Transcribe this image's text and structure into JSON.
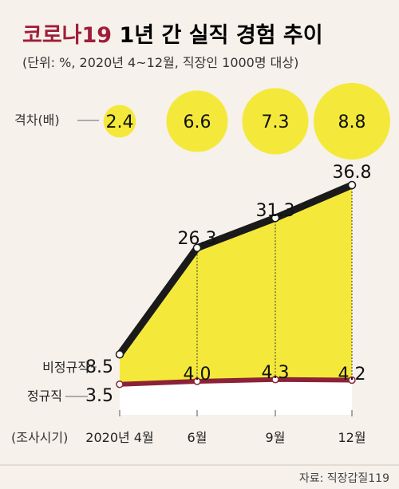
{
  "header": {
    "title_accent": "코로나19",
    "title_rest": " 1년 간 실직 경험 추이",
    "subtitle": "(단위: %, 2020년 4~12월, 직장인 1000명 대상)"
  },
  "gap_row": {
    "label": "격차(배)",
    "values": [
      "2.4",
      "6.6",
      "7.3",
      "8.8"
    ]
  },
  "series_labels": {
    "nonregular": "비정규직",
    "regular": "정규직"
  },
  "axis": {
    "prefix": "(조사시기)",
    "ticks": [
      "2020년 4월",
      "6월",
      "9월",
      "12월"
    ]
  },
  "source": "자료: 직장갑질119",
  "colors": {
    "background": "#f6f1ea",
    "fill": "#f4e93a",
    "nonregular_line": "#1a1a1a",
    "regular_line": "#8c2237",
    "accent": "#a01d3a"
  },
  "chart_data": {
    "type": "area",
    "x": [
      "2020년 4월",
      "6월",
      "9월",
      "12월"
    ],
    "series": [
      {
        "name": "비정규직",
        "values": [
          8.5,
          26.3,
          31.3,
          36.8
        ]
      },
      {
        "name": "정규직",
        "values": [
          3.5,
          4.0,
          4.3,
          4.2
        ]
      }
    ],
    "gap_ratio": [
      2.4,
      6.6,
      7.3,
      8.8
    ],
    "ylim": [
      0,
      40
    ]
  }
}
